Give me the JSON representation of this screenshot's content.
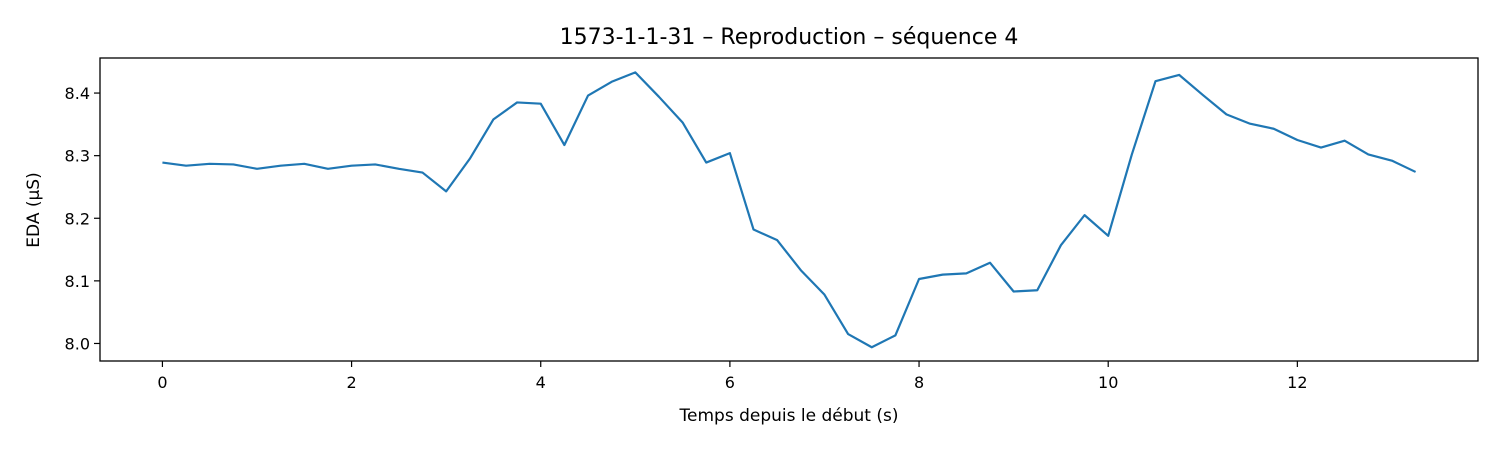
{
  "chart_data": {
    "type": "line",
    "title": "1573-1-1-31 – Reproduction – séquence 4",
    "xlabel": "Temps depuis le début (s)",
    "ylabel": "EDA (µS)",
    "xlim": [
      -0.66,
      13.91
    ],
    "ylim": [
      7.972,
      8.456
    ],
    "xticks": [
      0,
      2,
      4,
      6,
      8,
      10,
      12
    ],
    "yticks": [
      8.0,
      8.1,
      8.2,
      8.3,
      8.4
    ],
    "ytick_labels": [
      "8.0",
      "8.1",
      "8.2",
      "8.3",
      "8.4"
    ],
    "grid": false,
    "series_color": "#1f77b4",
    "series": [
      {
        "x": [
          0,
          0.25,
          0.5,
          0.75,
          1.0,
          1.25,
          1.5,
          1.75,
          2.0,
          2.25,
          2.5,
          2.75,
          3.0,
          3.25,
          3.5,
          3.75,
          4.0,
          4.25,
          4.5,
          4.75,
          5.0,
          5.25,
          5.5,
          5.75,
          6.0,
          6.25,
          6.5,
          6.75,
          7.0,
          7.25,
          7.5,
          7.75,
          8.0,
          8.25,
          8.5,
          8.75,
          9.0,
          9.25,
          9.5,
          9.75,
          10.0,
          10.25,
          10.5,
          10.75,
          11.0,
          11.25,
          11.5,
          11.75,
          12.0,
          12.25,
          12.5,
          12.75,
          13.0,
          13.25
        ],
        "values": [
          8.289,
          8.284,
          8.287,
          8.286,
          8.279,
          8.284,
          8.287,
          8.279,
          8.284,
          8.286,
          8.279,
          8.273,
          8.243,
          8.295,
          8.358,
          8.385,
          8.383,
          8.317,
          8.396,
          8.418,
          8.433,
          8.394,
          8.353,
          8.289,
          8.304,
          8.182,
          8.165,
          8.117,
          8.078,
          8.015,
          7.994,
          8.013,
          8.103,
          8.11,
          8.112,
          8.129,
          8.083,
          8.085,
          8.157,
          8.205,
          8.172,
          8.302,
          8.419,
          8.429,
          8.397,
          8.366,
          8.351,
          8.343,
          8.325,
          8.313,
          8.324,
          8.302,
          8.292,
          8.274
        ]
      }
    ]
  }
}
